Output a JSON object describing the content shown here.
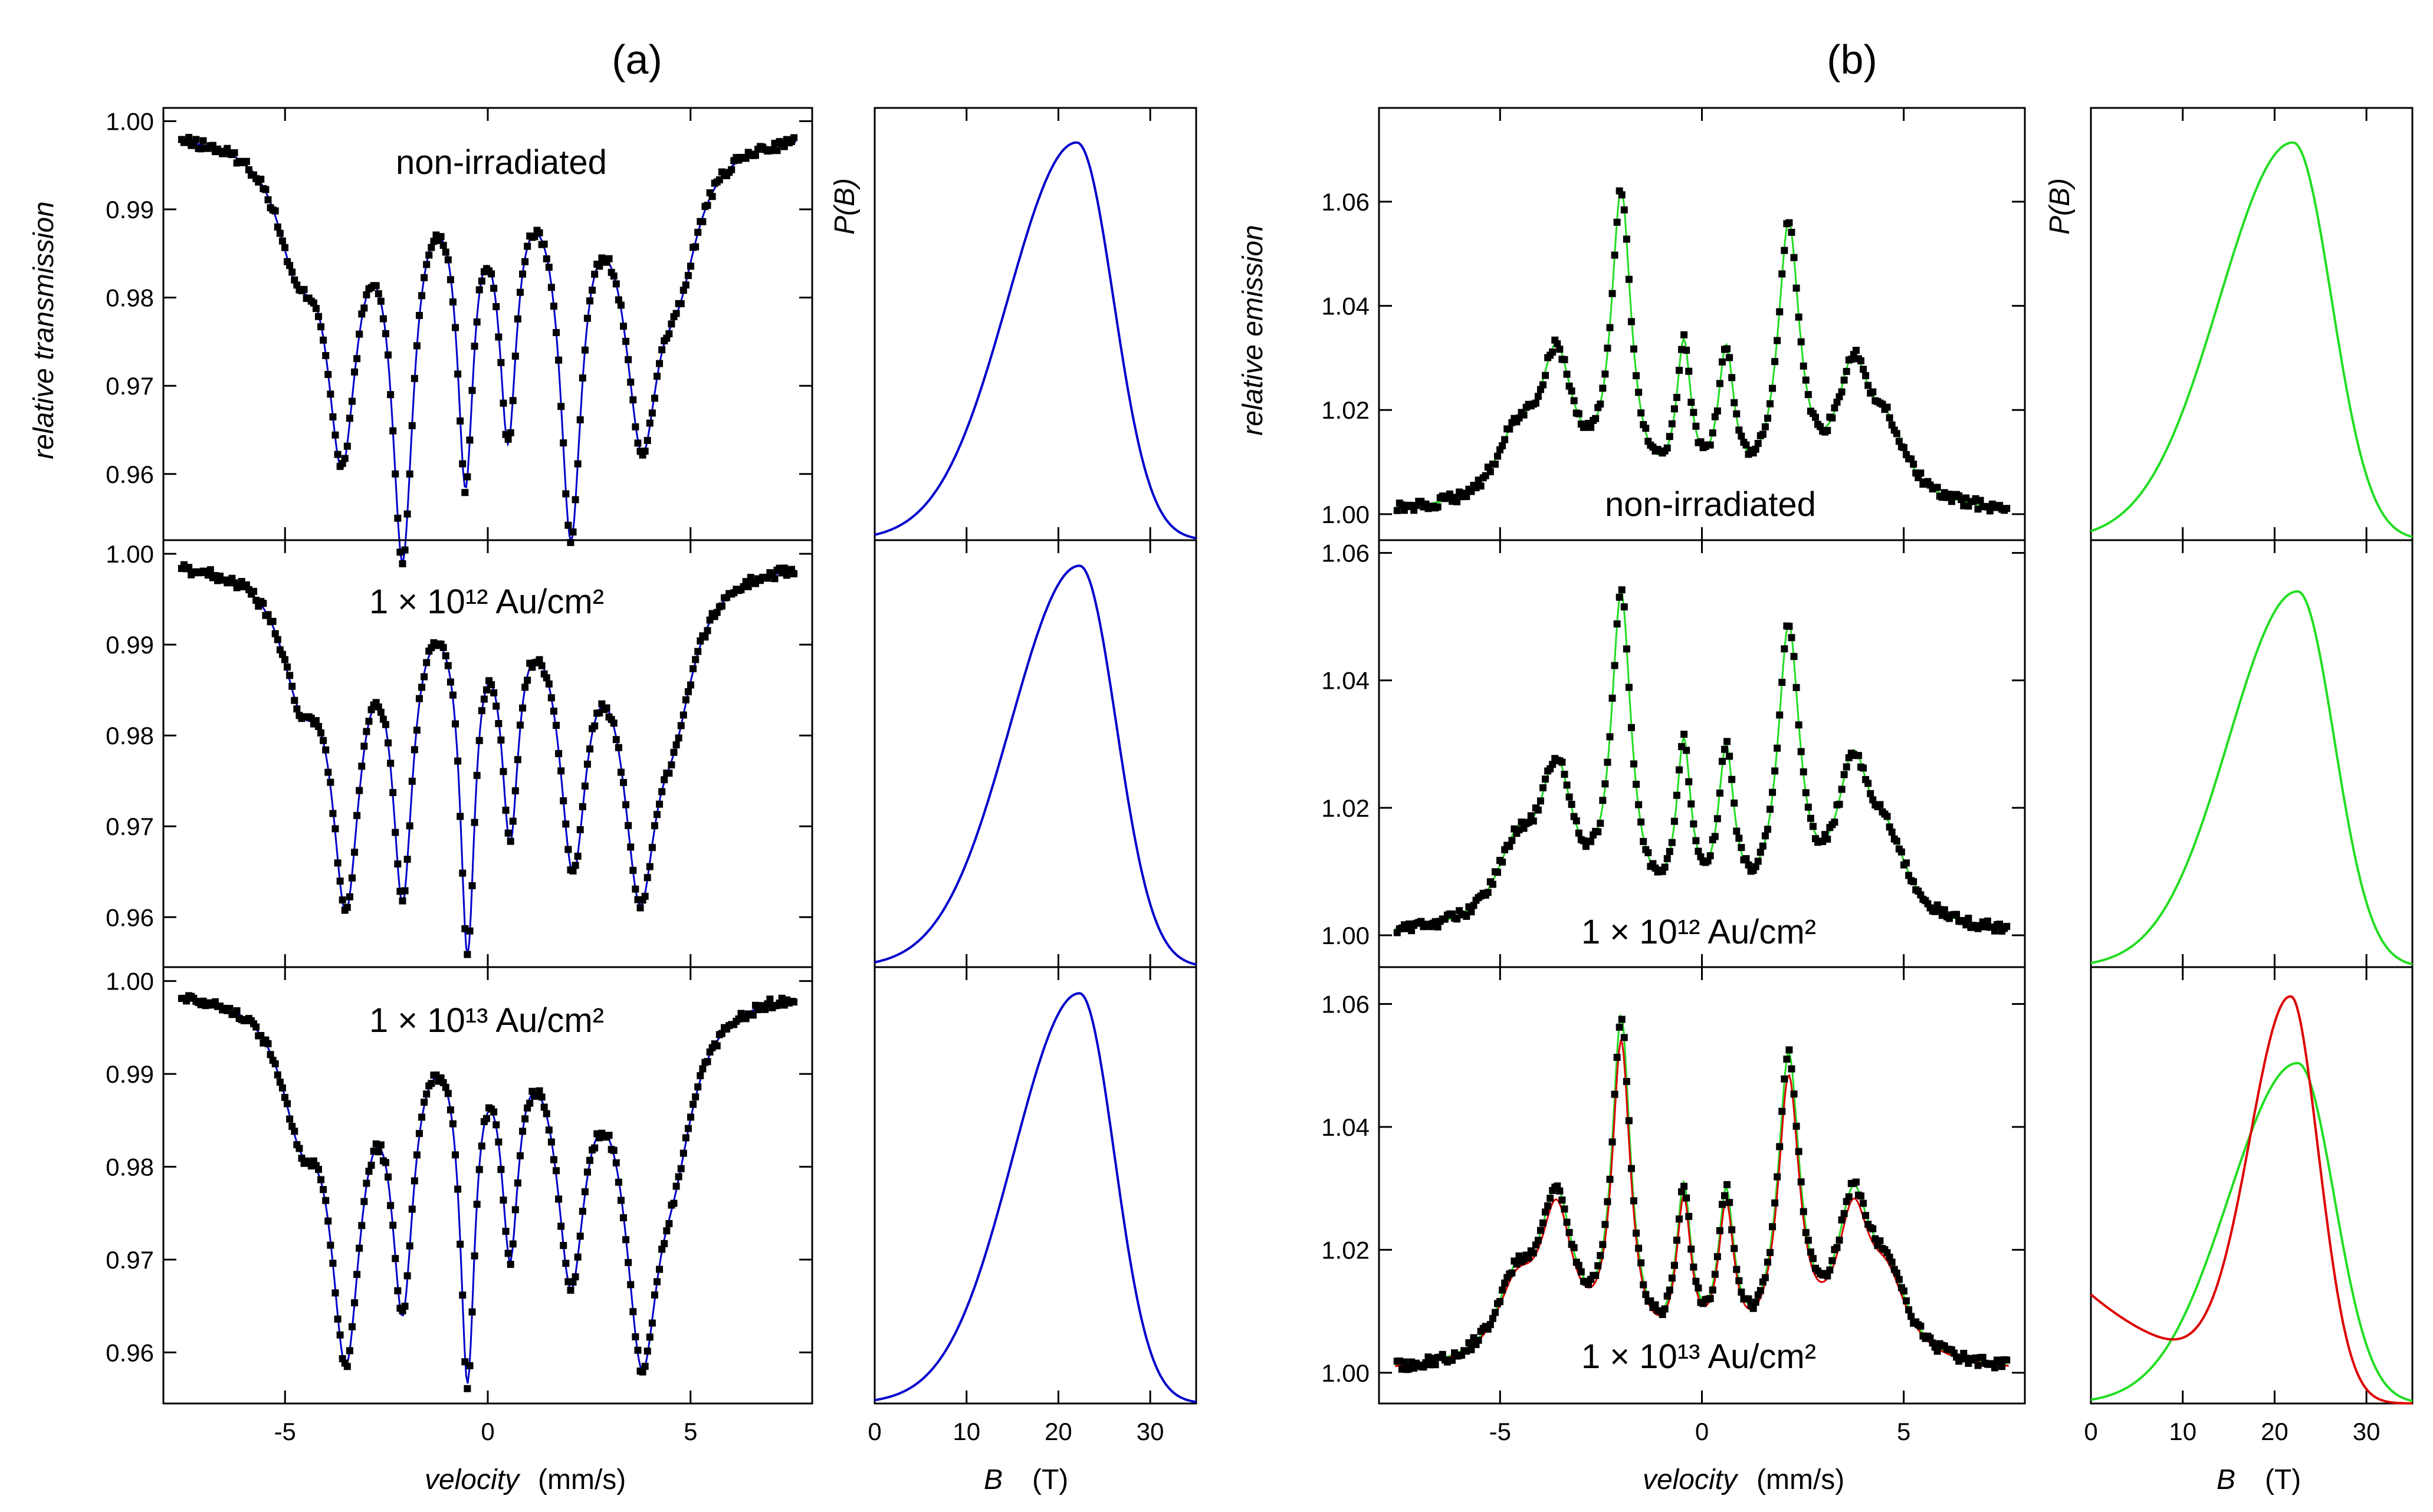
{
  "figure_labels": {
    "a": "(a)",
    "b": "(b)"
  },
  "axis_labels": {
    "a_ylabel": "relative transmission",
    "b_ylabel": "relative emission",
    "velocity_italic": "velocity",
    "velocity_unit": "(mm/s)",
    "field_italic": "B",
    "field_unit": "(T)",
    "pb_label": "P(B)"
  },
  "annotations": {
    "a_top": "non-irradiated",
    "a_mid": "1 × 10¹² Au/cm²",
    "a_bot": "1 × 10¹³ Au/cm²",
    "b_top": "non-irradiated",
    "b_mid": "1 × 10¹² Au/cm²",
    "b_bot": "1 × 10¹³ Au/cm²"
  },
  "colors": {
    "blue": "#0000cc",
    "green": "#22dd22",
    "red": "#dd0000",
    "points": "#000000"
  },
  "chart_data": [
    {
      "panel": "a-spectrum-top",
      "type": "scatter",
      "title": "non-irradiated",
      "xlabel": "velocity (mm/s)",
      "ylabel": "relative transmission",
      "xlim": [
        -8,
        8
      ],
      "ylim": [
        0.9525,
        1.0015
      ],
      "yticks": [
        0.96,
        0.97,
        0.98,
        0.99,
        1.0
      ],
      "baseline": 0.999,
      "lines": [
        {
          "pos": -3.6,
          "depth": 0.033,
          "w": 0.45
        },
        {
          "pos": -2.1,
          "depth": 0.044,
          "w": 0.32
        },
        {
          "pos": -0.55,
          "depth": 0.035,
          "w": 0.24
        },
        {
          "pos": 0.5,
          "depth": 0.03,
          "w": 0.26
        },
        {
          "pos": 2.05,
          "depth": 0.042,
          "w": 0.32
        },
        {
          "pos": 3.8,
          "depth": 0.031,
          "w": 0.5
        },
        {
          "pos": -4.7,
          "depth": 0.012,
          "w": 0.6
        },
        {
          "pos": 4.7,
          "depth": 0.012,
          "w": 0.6
        }
      ]
    },
    {
      "panel": "a-spectrum-mid",
      "type": "scatter",
      "title": "1 × 10¹² Au/cm²",
      "xlabel": "velocity (mm/s)",
      "ylabel": "relative transmission",
      "xlim": [
        -8,
        8
      ],
      "ylim": [
        0.9545,
        1.0015
      ],
      "yticks": [
        0.96,
        0.97,
        0.98,
        0.99,
        1.0
      ],
      "baseline": 0.9995,
      "lines": [
        {
          "pos": -3.5,
          "depth": 0.034,
          "w": 0.42
        },
        {
          "pos": -2.1,
          "depth": 0.033,
          "w": 0.3
        },
        {
          "pos": -0.5,
          "depth": 0.039,
          "w": 0.22
        },
        {
          "pos": 0.55,
          "depth": 0.026,
          "w": 0.25
        },
        {
          "pos": 2.1,
          "depth": 0.03,
          "w": 0.4
        },
        {
          "pos": 3.75,
          "depth": 0.032,
          "w": 0.5
        },
        {
          "pos": -4.6,
          "depth": 0.012,
          "w": 0.6
        },
        {
          "pos": 4.6,
          "depth": 0.012,
          "w": 0.6
        }
      ]
    },
    {
      "panel": "a-spectrum-bot",
      "type": "scatter",
      "title": "1 × 10¹³ Au/cm²",
      "xlabel": "velocity (mm/s)",
      "ylabel": "relative transmission",
      "xlim": [
        -8,
        8
      ],
      "ylim": [
        0.9545,
        1.0015
      ],
      "yticks": [
        0.96,
        0.97,
        0.98,
        0.99,
        1.0
      ],
      "baseline": 0.9995,
      "lines": [
        {
          "pos": -3.5,
          "depth": 0.036,
          "w": 0.45
        },
        {
          "pos": -2.1,
          "depth": 0.03,
          "w": 0.32
        },
        {
          "pos": -0.5,
          "depth": 0.038,
          "w": 0.22
        },
        {
          "pos": 0.55,
          "depth": 0.024,
          "w": 0.25
        },
        {
          "pos": 2.05,
          "depth": 0.028,
          "w": 0.42
        },
        {
          "pos": 3.8,
          "depth": 0.035,
          "w": 0.5
        },
        {
          "pos": -4.6,
          "depth": 0.012,
          "w": 0.6
        },
        {
          "pos": 4.6,
          "depth": 0.012,
          "w": 0.6
        }
      ]
    },
    {
      "panel": "b-spectrum-top",
      "type": "scatter",
      "title": "non-irradiated",
      "xlabel": "velocity (mm/s)",
      "ylabel": "relative emission",
      "xlim": [
        -8,
        8
      ],
      "ylim": [
        0.995,
        1.078
      ],
      "yticks": [
        1.0,
        1.02,
        1.04,
        1.06
      ],
      "baseline": 1.0,
      "lines": [
        {
          "pos": -3.6,
          "height": 0.027,
          "w": 0.5
        },
        {
          "pos": -2.0,
          "height": 0.058,
          "w": 0.3
        },
        {
          "pos": -0.45,
          "height": 0.028,
          "w": 0.22
        },
        {
          "pos": 0.6,
          "height": 0.027,
          "w": 0.24
        },
        {
          "pos": 2.15,
          "height": 0.052,
          "w": 0.33
        },
        {
          "pos": 3.75,
          "height": 0.024,
          "w": 0.5
        },
        {
          "pos": -4.6,
          "height": 0.012,
          "w": 0.6
        },
        {
          "pos": 4.6,
          "height": 0.012,
          "w": 0.6
        }
      ]
    },
    {
      "panel": "b-spectrum-mid",
      "type": "scatter",
      "title": "1 × 10¹² Au/cm²",
      "xlabel": "velocity (mm/s)",
      "ylabel": "relative emission",
      "xlim": [
        -8,
        8
      ],
      "ylim": [
        0.995,
        1.062
      ],
      "yticks": [
        1.0,
        1.02,
        1.04,
        1.06
      ],
      "baseline": 1.0,
      "lines": [
        {
          "pos": -3.6,
          "height": 0.023,
          "w": 0.5
        },
        {
          "pos": -2.0,
          "height": 0.05,
          "w": 0.3
        },
        {
          "pos": -0.45,
          "height": 0.026,
          "w": 0.22
        },
        {
          "pos": 0.6,
          "height": 0.025,
          "w": 0.24
        },
        {
          "pos": 2.15,
          "height": 0.045,
          "w": 0.33
        },
        {
          "pos": 3.75,
          "height": 0.023,
          "w": 0.5
        },
        {
          "pos": -4.6,
          "height": 0.011,
          "w": 0.6
        },
        {
          "pos": 4.6,
          "height": 0.011,
          "w": 0.6
        }
      ]
    },
    {
      "panel": "b-spectrum-bot",
      "type": "scatter",
      "title": "1 × 10¹³ Au/cm²",
      "xlabel": "velocity (mm/s)",
      "ylabel": "relative emission",
      "xlim": [
        -8,
        8
      ],
      "ylim": [
        0.995,
        1.066
      ],
      "yticks": [
        1.0,
        1.02,
        1.04,
        1.06
      ],
      "baseline": 1.0,
      "lines": [
        {
          "pos": -3.6,
          "height": 0.025,
          "w": 0.5
        },
        {
          "pos": -2.0,
          "height": 0.054,
          "w": 0.28
        },
        {
          "pos": -0.45,
          "height": 0.026,
          "w": 0.22
        },
        {
          "pos": 0.6,
          "height": 0.025,
          "w": 0.24
        },
        {
          "pos": 2.15,
          "height": 0.048,
          "w": 0.33
        },
        {
          "pos": 3.75,
          "height": 0.024,
          "w": 0.5
        },
        {
          "pos": -4.6,
          "height": 0.012,
          "w": 0.6
        },
        {
          "pos": 4.6,
          "height": 0.012,
          "w": 0.6
        }
      ]
    },
    {
      "panel": "a-pb-top",
      "type": "line",
      "xlabel": "B (T)",
      "ylabel": "P(B)",
      "xlim": [
        0,
        35
      ],
      "xticks": [
        0,
        10,
        20,
        30
      ],
      "series": [
        {
          "peak": 22,
          "sl": 7.5,
          "sr": 4.0,
          "max": 0.92
        }
      ]
    },
    {
      "panel": "a-pb-mid",
      "type": "line",
      "xlabel": "B (T)",
      "ylabel": "P(B)",
      "xlim": [
        0,
        35
      ],
      "xticks": [
        0,
        10,
        20,
        30
      ],
      "series": [
        {
          "peak": 22.3,
          "sl": 7.5,
          "sr": 4.0,
          "max": 0.94
        }
      ]
    },
    {
      "panel": "a-pb-bot",
      "type": "line",
      "xlabel": "B (T)",
      "ylabel": "P(B)",
      "xlim": [
        0,
        35
      ],
      "xticks": [
        0,
        10,
        20,
        30
      ],
      "series": [
        {
          "peak": 22.3,
          "sl": 7.2,
          "sr": 3.8,
          "max": 0.94
        }
      ]
    },
    {
      "panel": "b-pb-top",
      "type": "line",
      "xlabel": "B (T)",
      "ylabel": "P(B)",
      "xlim": [
        0,
        35
      ],
      "xticks": [
        0,
        10,
        20,
        30
      ],
      "series": [
        {
          "peak": 22,
          "sl": 8.0,
          "sr": 4.2,
          "max": 0.92
        }
      ]
    },
    {
      "panel": "b-pb-mid",
      "type": "line",
      "xlabel": "B (T)",
      "ylabel": "P(B)",
      "xlim": [
        0,
        35
      ],
      "xticks": [
        0,
        10,
        20,
        30
      ],
      "series": [
        {
          "peak": 22.5,
          "sl": 7.5,
          "sr": 4.0,
          "max": 0.88
        }
      ]
    },
    {
      "panel": "b-pb-bot",
      "type": "line",
      "xlabel": "B (T)",
      "ylabel": "P(B)",
      "xlim": [
        0,
        35
      ],
      "xticks": [
        0,
        10,
        20,
        30
      ],
      "series": [
        {
          "peak": 22.5,
          "sl": 7.5,
          "sr": 4.0,
          "max": 0.78
        },
        {
          "peak": 21.8,
          "sl": 4.5,
          "sr": 3.2,
          "max": 0.88,
          "tail": 0.25
        }
      ]
    }
  ]
}
